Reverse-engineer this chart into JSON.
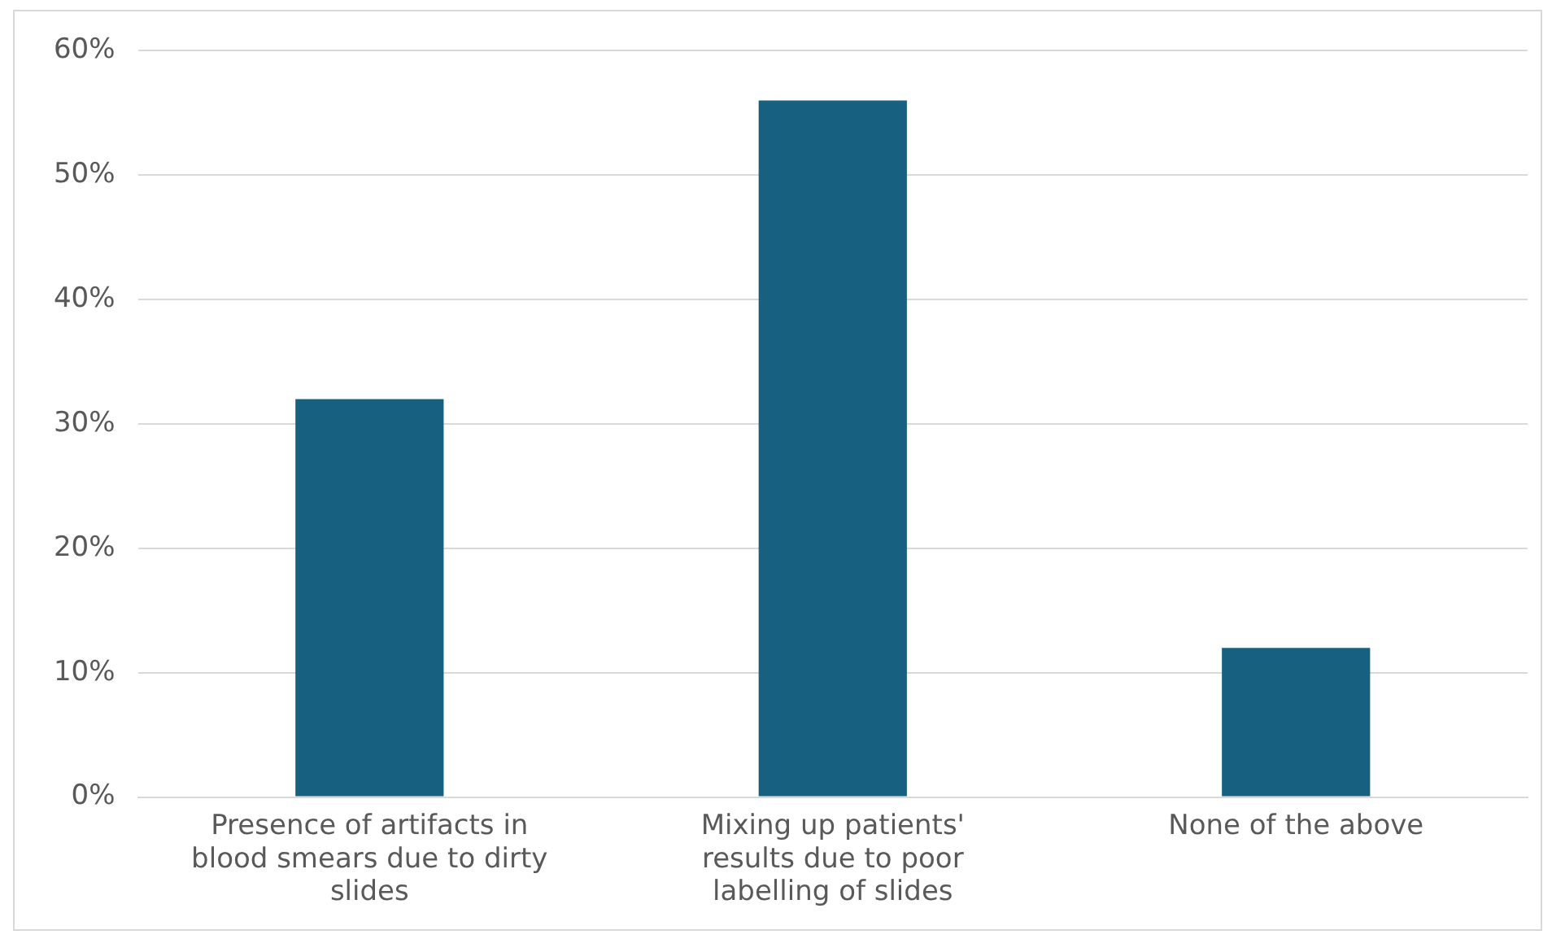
{
  "chart_data": {
    "type": "bar",
    "categories": [
      "Presence of artifacts in blood smears due to dirty slides",
      "Mixing up patients' results due to poor labelling of slides",
      "None of the above"
    ],
    "values": [
      32,
      56,
      12
    ],
    "color": "#17607f",
    "ylim": [
      0,
      60
    ],
    "yticks": [
      {
        "value": 0,
        "label": "0%"
      },
      {
        "value": 10,
        "label": "10%"
      },
      {
        "value": 20,
        "label": "20%"
      },
      {
        "value": 30,
        "label": "30%"
      },
      {
        "value": 40,
        "label": "40%"
      },
      {
        "value": 50,
        "label": "50%"
      },
      {
        "value": 60,
        "label": "60%"
      }
    ],
    "grid": "y",
    "legend": false
  }
}
